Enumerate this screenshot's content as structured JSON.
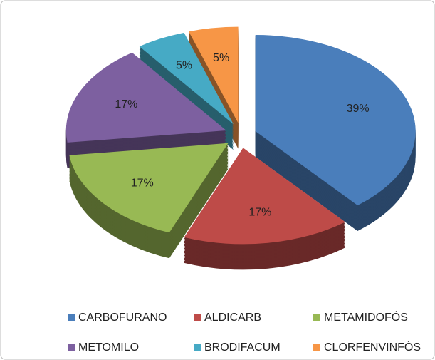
{
  "chart_data": {
    "type": "pie",
    "categories": [
      "CARBOFURANO",
      "ALDICARB",
      "METAMIDOFÓS",
      "METOMILO",
      "BRODIFACUM",
      "CLORFENVINFÓS"
    ],
    "values": [
      39,
      17,
      17,
      17,
      5,
      5
    ],
    "value_labels": [
      "39%",
      "17%",
      "17%",
      "17%",
      "5%",
      "5%"
    ],
    "colors": [
      "#4a7ebb",
      "#be4b48",
      "#98b954",
      "#7d60a0",
      "#46aac5",
      "#f79646"
    ],
    "legend": "bottom"
  }
}
